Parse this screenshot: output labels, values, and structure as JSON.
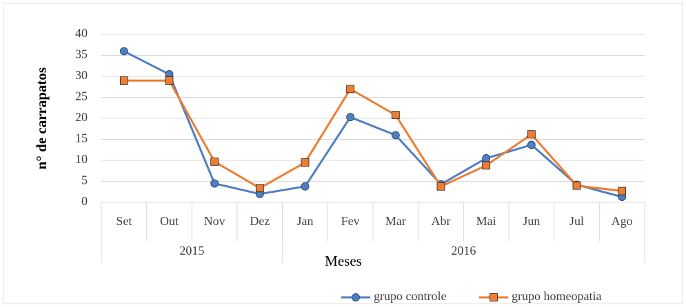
{
  "chart_data": {
    "type": "line",
    "y_label": "n° de carrapatos",
    "x_label": "Meses",
    "categories": [
      "Set",
      "Out",
      "Nov",
      "Dez",
      "Jan",
      "Fev",
      "Mar",
      "Abr",
      "Mai",
      "Jun",
      "Jul",
      "Ago"
    ],
    "x_groups": [
      {
        "label": "2015",
        "categories": [
          "Set",
          "Out",
          "Nov",
          "Dez"
        ]
      },
      {
        "label": "2016",
        "categories": [
          "Jan",
          "Fev",
          "Mar",
          "Abr",
          "Mai",
          "Jun",
          "Jul",
          "Ago"
        ]
      }
    ],
    "series": [
      {
        "name": "grupo controle",
        "color": "#4f7fc0",
        "marker": "circle",
        "values": [
          36,
          30.5,
          4.5,
          2,
          3.8,
          20.3,
          16,
          4.3,
          10.5,
          13.7,
          4.2,
          1.3
        ]
      },
      {
        "name": "grupo homeopatia",
        "color": "#ed7d31",
        "marker": "square",
        "values": [
          29,
          29,
          9.7,
          3.4,
          9.5,
          27,
          20.8,
          3.8,
          8.8,
          16.2,
          4,
          2.7
        ]
      }
    ],
    "ylim": [
      0,
      40
    ],
    "yticks": [
      0,
      5,
      10,
      15,
      20,
      25,
      30,
      35,
      40
    ],
    "grid": true,
    "legend": "bottom-right"
  }
}
